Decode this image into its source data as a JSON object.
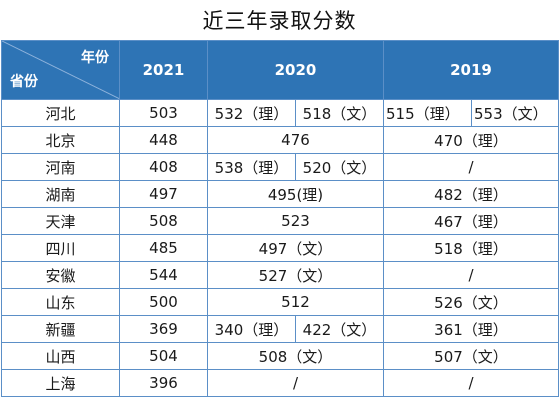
{
  "title": "近三年录取分数",
  "header": {
    "year_label": "年份",
    "province_label": "省份",
    "years": [
      "2021",
      "2020",
      "2019"
    ]
  },
  "rows": [
    {
      "province": "河北",
      "y2021": "503",
      "y2020a": "532（理）",
      "y2020b": "518（文）",
      "y2019a": "515（理）",
      "y2019b": "553（文）"
    },
    {
      "province": "北京",
      "y2021": "448",
      "y2020": "476",
      "y2019": "470（理）"
    },
    {
      "province": "河南",
      "y2021": "408",
      "y2020a": "538（理）",
      "y2020b": "520（文）",
      "y2019": "/"
    },
    {
      "province": "湖南",
      "y2021": "497",
      "y2020": "495(理)",
      "y2019": "482（理）"
    },
    {
      "province": "天津",
      "y2021": "508",
      "y2020": "523",
      "y2019": "467（理）"
    },
    {
      "province": "四川",
      "y2021": "485",
      "y2020": "497（文）",
      "y2019": "518（理）"
    },
    {
      "province": "安徽",
      "y2021": "544",
      "y2020": "527（文）",
      "y2019": "/"
    },
    {
      "province": "山东",
      "y2021": "500",
      "y2020": "512",
      "y2019": "526（文）"
    },
    {
      "province": "新疆",
      "y2021": "369",
      "y2020a": "340（理）",
      "y2020b": "422（文）",
      "y2019": "361（理）"
    },
    {
      "province": "山西",
      "y2021": "504",
      "y2020": "508（文）",
      "y2019": "507（文）"
    },
    {
      "province": "上海",
      "y2021": "396",
      "y2020": "/",
      "y2019": "/"
    }
  ]
}
